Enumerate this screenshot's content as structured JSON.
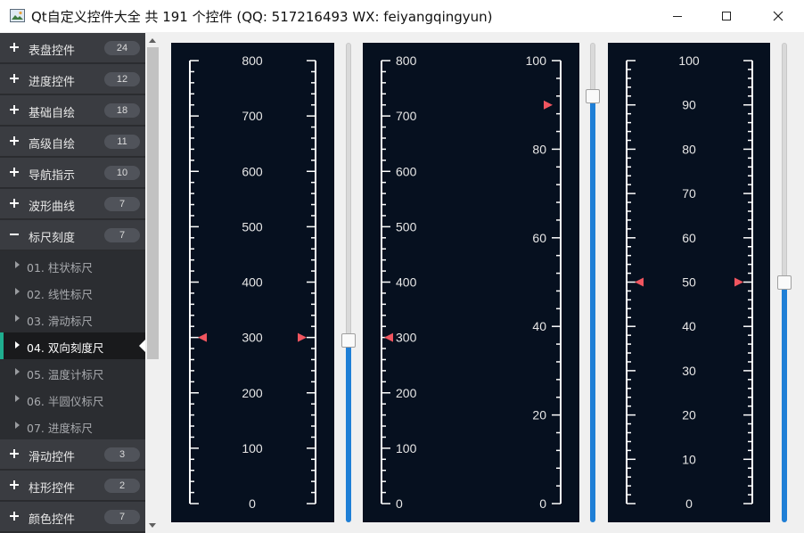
{
  "window": {
    "title": "Qt自定义控件大全 共 191 个控件 (QQ: 517216493 WX: feiyangqingyun)",
    "icons": {
      "app": "app-image-icon",
      "minimize": "minimize-icon",
      "maximize": "maximize-icon",
      "close": "close-icon"
    }
  },
  "sidebar": {
    "groups_top": [
      {
        "label": "表盘控件",
        "count": "24"
      },
      {
        "label": "进度控件",
        "count": "12"
      },
      {
        "label": "基础自绘",
        "count": "18"
      },
      {
        "label": "高级自绘",
        "count": "11"
      },
      {
        "label": "导航指示",
        "count": "10"
      },
      {
        "label": "波形曲线",
        "count": "7"
      },
      {
        "label": "标尺刻度",
        "count": "7",
        "expanded": true
      }
    ],
    "items": [
      {
        "label": "01. 柱状标尺"
      },
      {
        "label": "02. 线性标尺"
      },
      {
        "label": "03. 滑动标尺"
      },
      {
        "label": "04. 双向刻度尺",
        "selected": true
      },
      {
        "label": "05. 温度计标尺"
      },
      {
        "label": "06. 半圆仪标尺"
      },
      {
        "label": "07. 进度标尺"
      }
    ],
    "groups_bottom": [
      {
        "label": "滑动控件",
        "count": "3"
      },
      {
        "label": "柱形控件",
        "count": "2"
      },
      {
        "label": "颜色控件",
        "count": "7"
      }
    ],
    "colors": {
      "background": "#2b2d31",
      "group": "#3a3c41",
      "selected": "#191a1c",
      "accent": "#1fae8f"
    }
  },
  "rulers": [
    {
      "min": 0,
      "max": 800,
      "major_step": 100,
      "value": 300,
      "labels": [
        "800",
        "700",
        "600",
        "500",
        "400",
        "300",
        "200",
        "100",
        "0"
      ],
      "slider_fraction": 0.375
    },
    {
      "left": {
        "min": 0,
        "max": 800,
        "major_step": 100,
        "value": 300,
        "labels": [
          "800",
          "700",
          "600",
          "500",
          "400",
          "300",
          "200",
          "100",
          "0"
        ]
      },
      "right": {
        "min": 0,
        "max": 100,
        "major_step": 20,
        "value": 90,
        "labels": [
          "100",
          "80",
          "60",
          "40",
          "20",
          "0"
        ]
      },
      "slider_fraction": 0.9
    },
    {
      "min": 0,
      "max": 100,
      "major_step": 10,
      "value": 50,
      "labels": [
        "100",
        "90",
        "80",
        "70",
        "60",
        "50",
        "40",
        "30",
        "20",
        "10",
        "0"
      ],
      "slider_fraction": 0.5
    }
  ],
  "colors": {
    "panel": "#06101f",
    "scale": "#ffffff",
    "label": "#e6e6e6",
    "pointer": "#f0555f",
    "slider_fill": "#1f7fd6"
  }
}
